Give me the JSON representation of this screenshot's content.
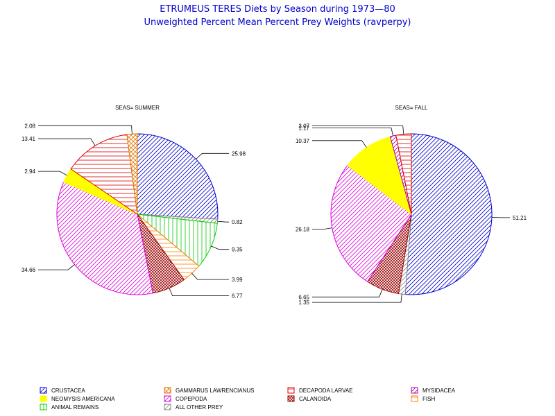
{
  "titles": {
    "line1": "ETRUMEUS TERES Diets by Season during 1973—80",
    "line2": "Unweighted Percent Mean Percent Prey  Weights (ravperpy)"
  },
  "categories": [
    {
      "key": "crustacea",
      "name": "CRUSTACEA",
      "color": "#0000cc",
      "pattern": "diag-right"
    },
    {
      "key": "gammarus",
      "name": "GAMMARUS LAWRENCIANUS",
      "color": "#e07800",
      "pattern": "cross-diag"
    },
    {
      "key": "decapoda",
      "name": "DECAPODA LARVAE",
      "color": "#dd0000",
      "pattern": "horizontal"
    },
    {
      "key": "mysidacea",
      "name": "MYSIDACEA",
      "color": "#aa00aa",
      "pattern": "diag-right"
    },
    {
      "key": "neomysis",
      "name": "NEOMYSIS AMERICANA",
      "color": "#ffff00",
      "pattern": "solid"
    },
    {
      "key": "copepoda",
      "name": "COPEPODA",
      "color": "#dd00dd",
      "pattern": "diag-right"
    },
    {
      "key": "calanoida",
      "name": "CALANOIDA",
      "color": "#990000",
      "pattern": "crosshatch"
    },
    {
      "key": "fish",
      "name": "FISH",
      "color": "#ff8000",
      "pattern": "horizontal"
    },
    {
      "key": "animal_remains",
      "name": "ANIMAL REMAINS",
      "color": "#00cc00",
      "pattern": "vertical"
    },
    {
      "key": "other",
      "name": "ALL OTHER PREY",
      "color": "#888888",
      "pattern": "diag-right"
    }
  ],
  "chart_data": [
    {
      "type": "pie",
      "title": "SEAS= SUMMER",
      "slices": [
        {
          "category": "crustacea",
          "value": 25.98,
          "label": "25.98"
        },
        {
          "category": "other",
          "value": 0.82,
          "label": "0.82"
        },
        {
          "category": "animal_remains",
          "value": 9.35,
          "label": "9.35"
        },
        {
          "category": "fish",
          "value": 3.99,
          "label": "3.99"
        },
        {
          "category": "calanoida",
          "value": 6.77,
          "label": "6.77"
        },
        {
          "category": "copepoda",
          "value": 34.66,
          "label": "34.66"
        },
        {
          "category": "neomysis",
          "value": 2.94,
          "label": "2.94"
        },
        {
          "category": "decapoda",
          "value": 13.41,
          "label": "13.41"
        },
        {
          "category": "gammarus",
          "value": 2.08,
          "label": "2.08"
        }
      ]
    },
    {
      "type": "pie",
      "title": "SEAS= FALL",
      "slices": [
        {
          "category": "crustacea",
          "value": 51.21,
          "label": "51.21"
        },
        {
          "category": "other",
          "value": 1.35,
          "label": "1.35"
        },
        {
          "category": "calanoida",
          "value": 6.65,
          "label": "6.65"
        },
        {
          "category": "copepoda",
          "value": 26.18,
          "label": "26.18"
        },
        {
          "category": "neomysis",
          "value": 10.37,
          "label": "10.37"
        },
        {
          "category": "mysidacea",
          "value": 1.17,
          "label": "1.17"
        },
        {
          "category": "decapoda",
          "value": 3.07,
          "label": "3.07"
        }
      ]
    }
  ]
}
